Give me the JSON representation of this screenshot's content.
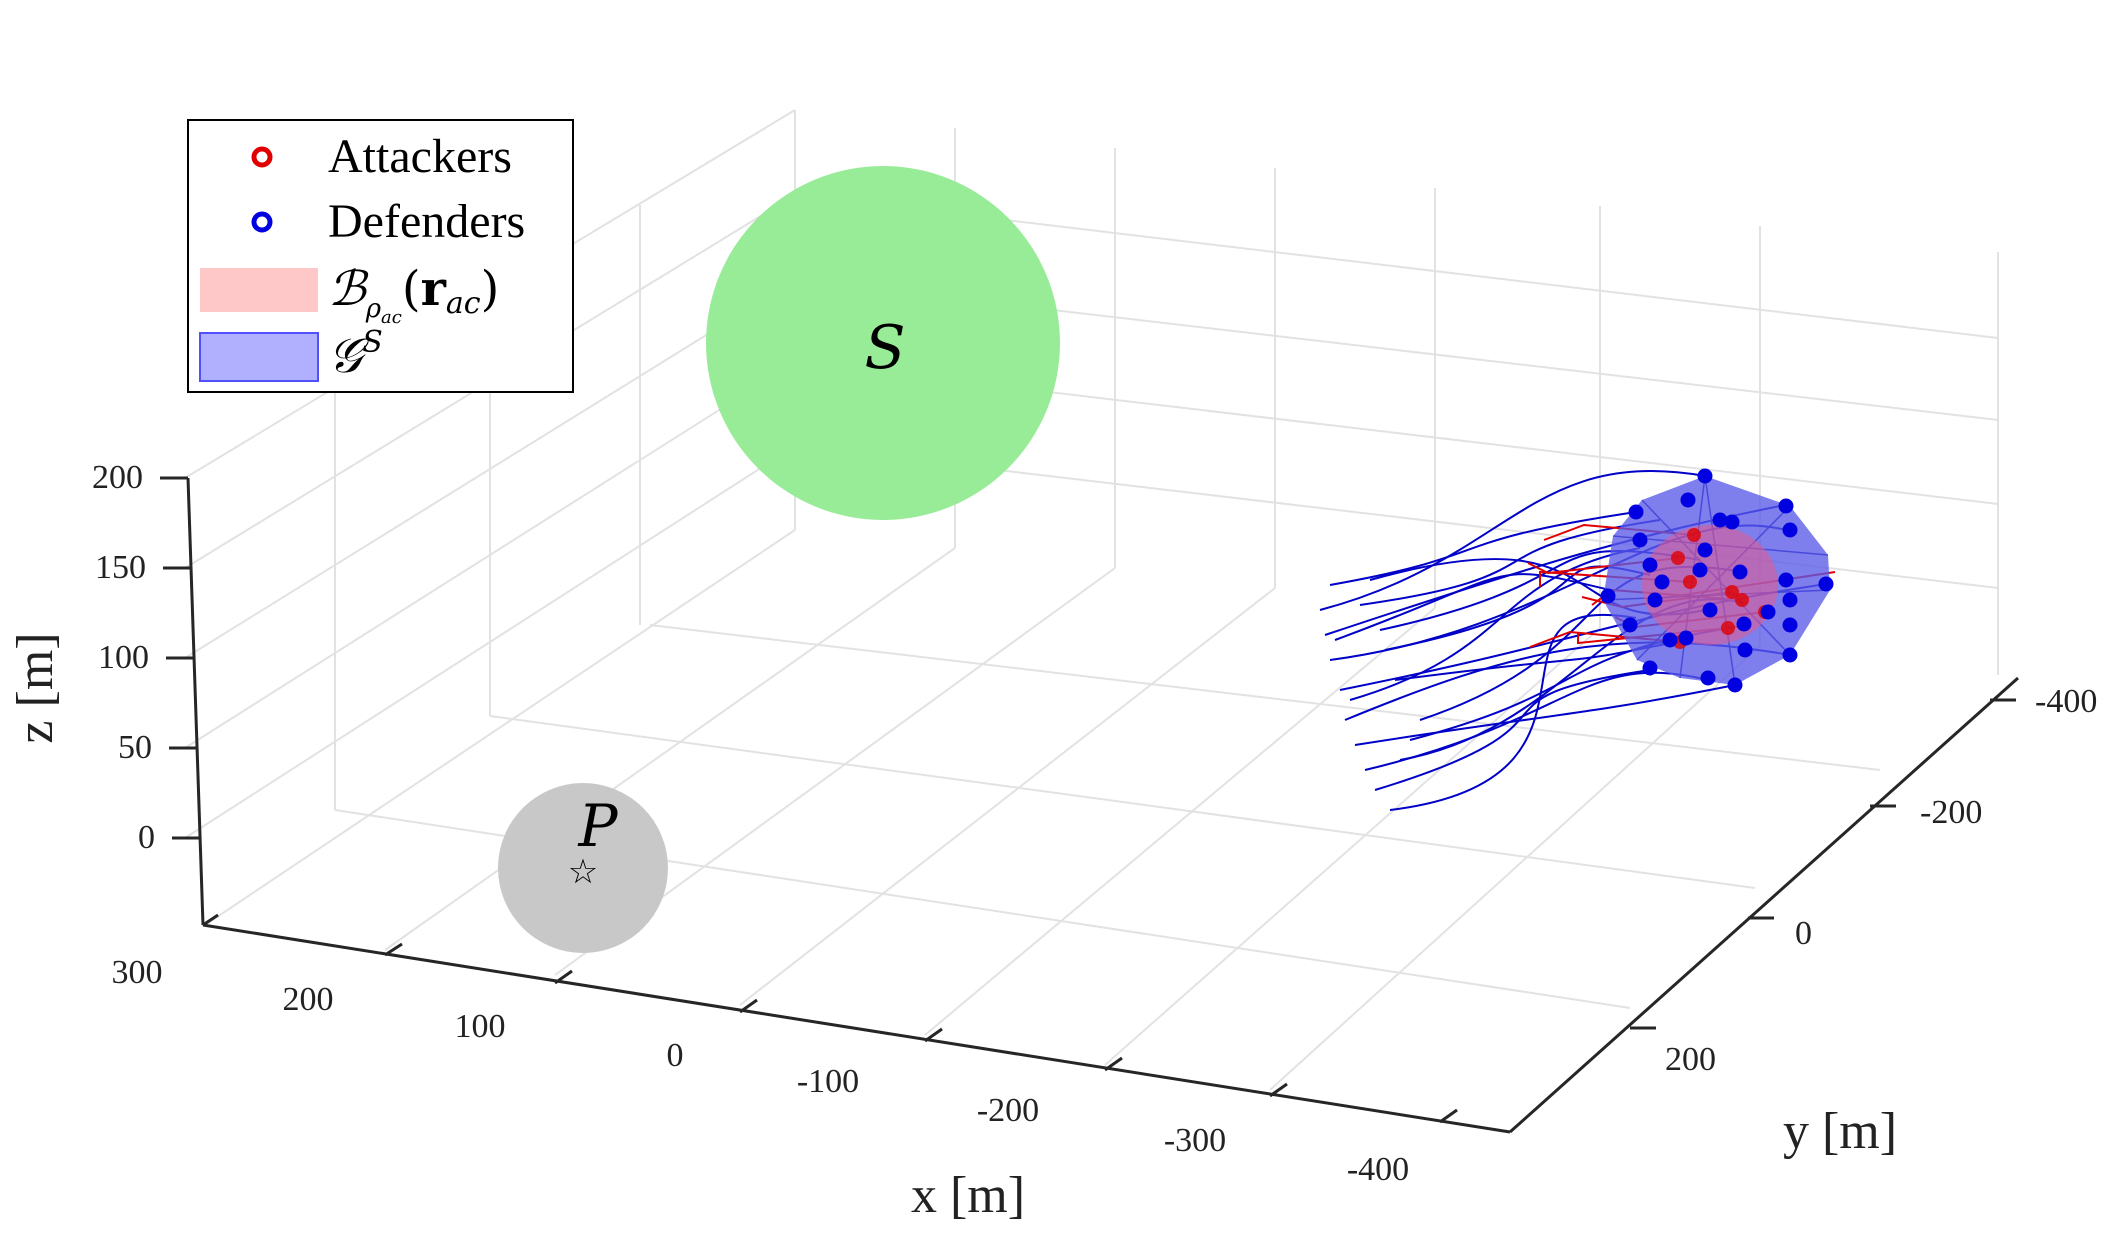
{
  "chart_data": {
    "type": "scatter",
    "projection": "3d",
    "xlabel": "x [m]",
    "ylabel": "y [m]",
    "zlabel": "z [m]",
    "x_ticks": [
      "300",
      "200",
      "100",
      "0",
      "-100",
      "-200",
      "-300",
      "-400"
    ],
    "y_ticks": [
      "-400",
      "-200",
      "0",
      "200"
    ],
    "z_ticks": [
      "200",
      "150",
      "100",
      "50",
      "0"
    ],
    "grid": true,
    "legend_position": "top-left",
    "legend": [
      {
        "label": "Attackers",
        "marker": "circle",
        "color": "#e00000"
      },
      {
        "label": "Defenders",
        "marker": "circle",
        "color": "#0000e0"
      },
      {
        "label": "B_{ρac}(r_ac)",
        "patch": "#ffc8c8"
      },
      {
        "label": "G^S",
        "patch": "#b0b0ff"
      }
    ],
    "regions": [
      {
        "name": "S",
        "color": "#98ec98"
      },
      {
        "name": "P",
        "color": "#c8c8c8",
        "marker": "star"
      }
    ],
    "series": [
      {
        "name": "Attackers",
        "color": "#e00000"
      },
      {
        "name": "Defenders",
        "color": "#0000e0"
      }
    ]
  },
  "legend_text": {
    "attackers": "Attackers",
    "defenders": "Defenders"
  },
  "colors": {
    "attacker": "#e00000",
    "defender": "#0000e0",
    "trajectory": "#0000c8",
    "safe_region": "#98ec98",
    "protected_region": "#c8c8c8",
    "hull": "#5a5ae8",
    "attack_ball": "#e65a8a"
  },
  "markers": {
    "star": "☆"
  }
}
